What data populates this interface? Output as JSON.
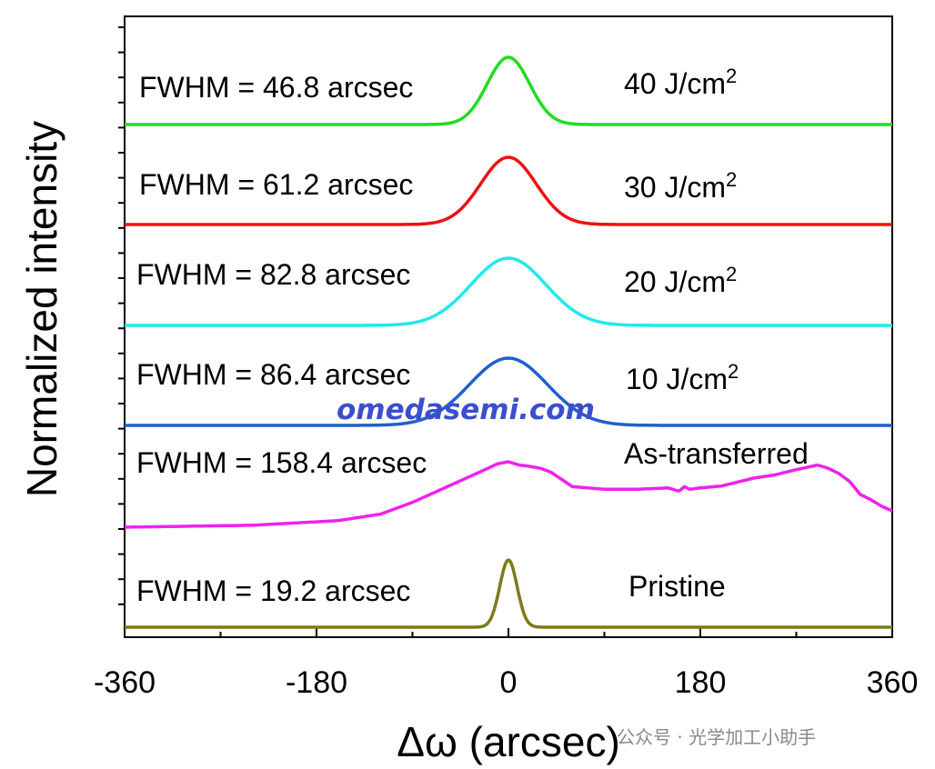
{
  "chart_data": {
    "type": "line",
    "title": "",
    "xlabel": "Δω (arcsec)",
    "ylabel": "Normalized intensity",
    "xlim": [
      -360,
      360
    ],
    "xticks": [
      "-360",
      "-180",
      "0",
      "180",
      "360"
    ],
    "series": [
      {
        "name": "40 J/cm2",
        "condition_main": "40 J/cm",
        "condition_sup": "2",
        "fwhm_label": "FWHM = 46.8 arcsec",
        "fwhm": 46.8,
        "color": "#22dd22",
        "shape": "gauss",
        "peak": 1.0
      },
      {
        "name": "30 J/cm2",
        "condition_main": "30 J/cm",
        "condition_sup": "2",
        "fwhm_label": "FWHM = 61.2 arcsec",
        "fwhm": 61.2,
        "color": "#ee1111",
        "shape": "gauss",
        "peak": 1.0
      },
      {
        "name": "20 J/cm2",
        "condition_main": "20 J/cm",
        "condition_sup": "2",
        "fwhm_label": "FWHM = 82.8 arcsec",
        "fwhm": 82.8,
        "color": "#22e8ee",
        "shape": "gauss",
        "peak": 1.0
      },
      {
        "name": "10 J/cm2",
        "condition_main": "10 J/cm",
        "condition_sup": "2",
        "fwhm_label": "FWHM = 86.4 arcsec",
        "fwhm": 86.4,
        "color": "#1f5fd0",
        "shape": "gauss",
        "peak": 1.0
      },
      {
        "name": "As-transferred",
        "condition_main": "As-transferred",
        "condition_sup": "",
        "fwhm_label": "FWHM = 158.4 arcsec",
        "fwhm": 158.4,
        "color": "#ee22ee",
        "shape": "broad",
        "peak": 1.0
      },
      {
        "name": "Pristine",
        "condition_main": "Pristine",
        "condition_sup": "",
        "fwhm_label": "FWHM = 19.2 arcsec",
        "fwhm": 19.2,
        "color": "#7b7b1a",
        "shape": "gauss",
        "peak": 1.0
      }
    ],
    "broad_profile": {
      "x": [
        -360,
        -240,
        -160,
        -120,
        -90,
        -60,
        -30,
        -10,
        0,
        10,
        20,
        30,
        40,
        60,
        90,
        120,
        150,
        160,
        165,
        170,
        180,
        200,
        230,
        250,
        270,
        290,
        300,
        310,
        320,
        330,
        340,
        350,
        360
      ],
      "y": [
        0.0,
        0.03,
        0.1,
        0.2,
        0.38,
        0.6,
        0.82,
        0.97,
        1.0,
        0.95,
        0.93,
        0.9,
        0.84,
        0.62,
        0.58,
        0.58,
        0.6,
        0.55,
        0.62,
        0.58,
        0.6,
        0.63,
        0.75,
        0.8,
        0.88,
        0.95,
        0.9,
        0.82,
        0.7,
        0.5,
        0.42,
        0.32,
        0.25
      ]
    }
  },
  "watermark": "omedasemi.com",
  "source_label": "公众号 · 光学加工小助手"
}
